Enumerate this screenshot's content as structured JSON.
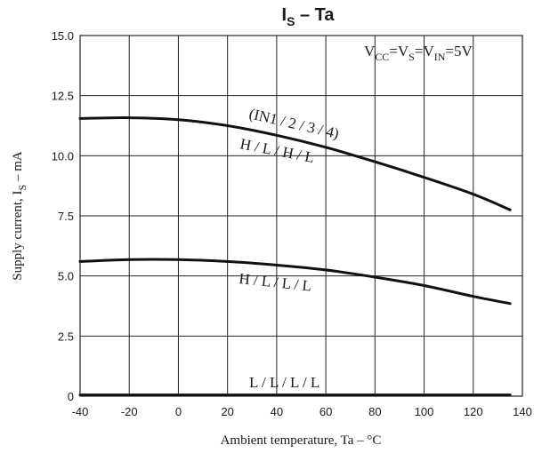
{
  "chart_data": {
    "type": "line",
    "title": {
      "main": "I",
      "sub": "S",
      "rest": " – Ta"
    },
    "xlabel": "Ambient temperature, Ta  –  °C",
    "ylabel": {
      "pre": "Supply current, I",
      "sub": "S",
      "post": "  –  mA"
    },
    "xlim": [
      -40,
      140
    ],
    "ylim": [
      0,
      15
    ],
    "x_ticks": [
      -40,
      -20,
      0,
      20,
      40,
      60,
      80,
      100,
      120,
      140
    ],
    "y_ticks": [
      {
        "value": 0,
        "label": "0"
      },
      {
        "value": 2.5,
        "label": "2.5"
      },
      {
        "value": 5,
        "label": "5.0"
      },
      {
        "value": 7.5,
        "label": "7.5"
      },
      {
        "value": 10,
        "label": "10.0"
      },
      {
        "value": 12.5,
        "label": "12.5"
      },
      {
        "value": 15,
        "label": "15.0"
      }
    ],
    "grid": true,
    "condition": {
      "v1": "V",
      "s1": "CC",
      "v2": "=V",
      "s2": "S",
      "v3": "=V",
      "s3": "IN",
      "v4": "=5V"
    },
    "input_header": "(IN1 / 2 / 3 / 4)",
    "series": [
      {
        "label": "H / L / H / L",
        "x": [
          -40,
          -20,
          0,
          20,
          40,
          60,
          80,
          100,
          120,
          135
        ],
        "y": [
          11.55,
          11.58,
          11.5,
          11.25,
          10.85,
          10.35,
          9.75,
          9.1,
          8.4,
          7.75
        ]
      },
      {
        "label": "H / L / L / L",
        "x": [
          -40,
          -20,
          0,
          20,
          40,
          60,
          80,
          100,
          120,
          135
        ],
        "y": [
          5.6,
          5.68,
          5.68,
          5.6,
          5.45,
          5.25,
          4.95,
          4.6,
          4.15,
          3.85
        ]
      },
      {
        "label": "L / L / L / L",
        "x": [
          -40,
          135
        ],
        "y": [
          0.05,
          0.05
        ]
      }
    ]
  }
}
